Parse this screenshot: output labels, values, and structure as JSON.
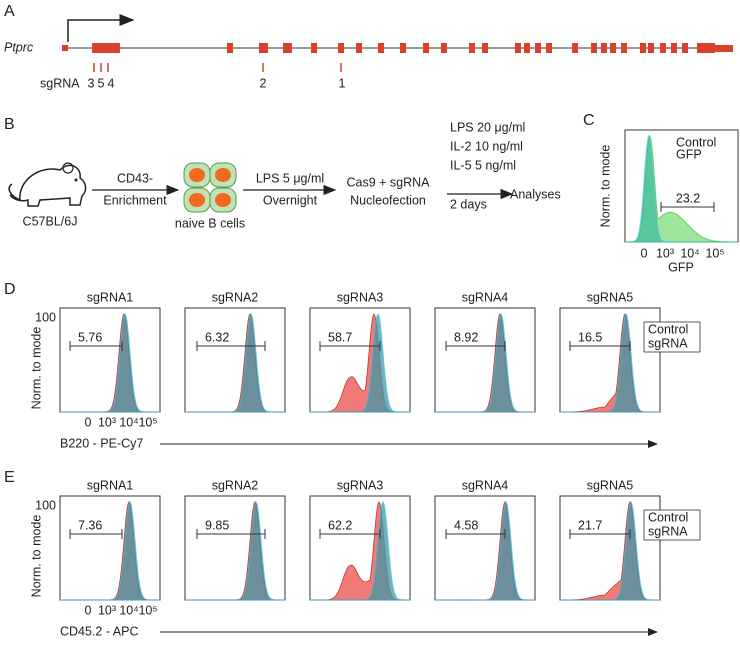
{
  "panel_a": {
    "label": "A",
    "gene": "Ptprc",
    "sgrna_label": "sgRNA",
    "sgrna_numbers": [
      "3",
      "5",
      "4",
      "2",
      "1"
    ]
  },
  "panel_b": {
    "label": "B",
    "mouse": "C57BL/6J",
    "step1": [
      "CD43-",
      "Enrichment"
    ],
    "cells": "naive B cells",
    "step2": [
      "LPS 5 μg/ml",
      "Overnight"
    ],
    "step3": [
      "Cas9 + sgRNA",
      "Nucleofection"
    ],
    "step4": [
      "LPS 20 μg/ml",
      "IL-2 10 ng/ml",
      "IL-5 5 ng/ml"
    ],
    "step4_time": "2 days",
    "end": "Analyses"
  },
  "panel_c": {
    "label": "C",
    "legend": [
      "Control",
      "GFP"
    ],
    "gate": "23.2",
    "y_label": "Norm. to mode",
    "x_label": "GFP",
    "x_ticks": [
      "0",
      "10³",
      "10⁴",
      "10⁵"
    ]
  },
  "panel_d": {
    "label": "D",
    "y_label": "Norm. to mode",
    "y_tick": "100",
    "x_label": "B220 - PE-Cy7",
    "x_ticks": [
      "0",
      "10³",
      "10⁴",
      "10⁵"
    ],
    "legend": [
      "Control",
      "sgRNA"
    ],
    "plots": [
      {
        "title": "sgRNA1",
        "gate": "5.76"
      },
      {
        "title": "sgRNA2",
        "gate": "6.32"
      },
      {
        "title": "sgRNA3",
        "gate": "58.7"
      },
      {
        "title": "sgRNA4",
        "gate": "8.92"
      },
      {
        "title": "sgRNA5",
        "gate": "16.5"
      }
    ]
  },
  "panel_e": {
    "label": "E",
    "y_label": "Norm. to mode",
    "y_tick": "100",
    "x_label": "CD45.2 - APC",
    "x_ticks": [
      "0",
      "10³",
      "10⁴",
      "10⁵"
    ],
    "legend": [
      "Control",
      "sgRNA"
    ],
    "plots": [
      {
        "title": "sgRNA1",
        "gate": "7.36"
      },
      {
        "title": "sgRNA2",
        "gate": "9.85"
      },
      {
        "title": "sgRNA3",
        "gate": "62.2"
      },
      {
        "title": "sgRNA4",
        "gate": "4.58"
      },
      {
        "title": "sgRNA5",
        "gate": "21.7"
      }
    ]
  }
}
